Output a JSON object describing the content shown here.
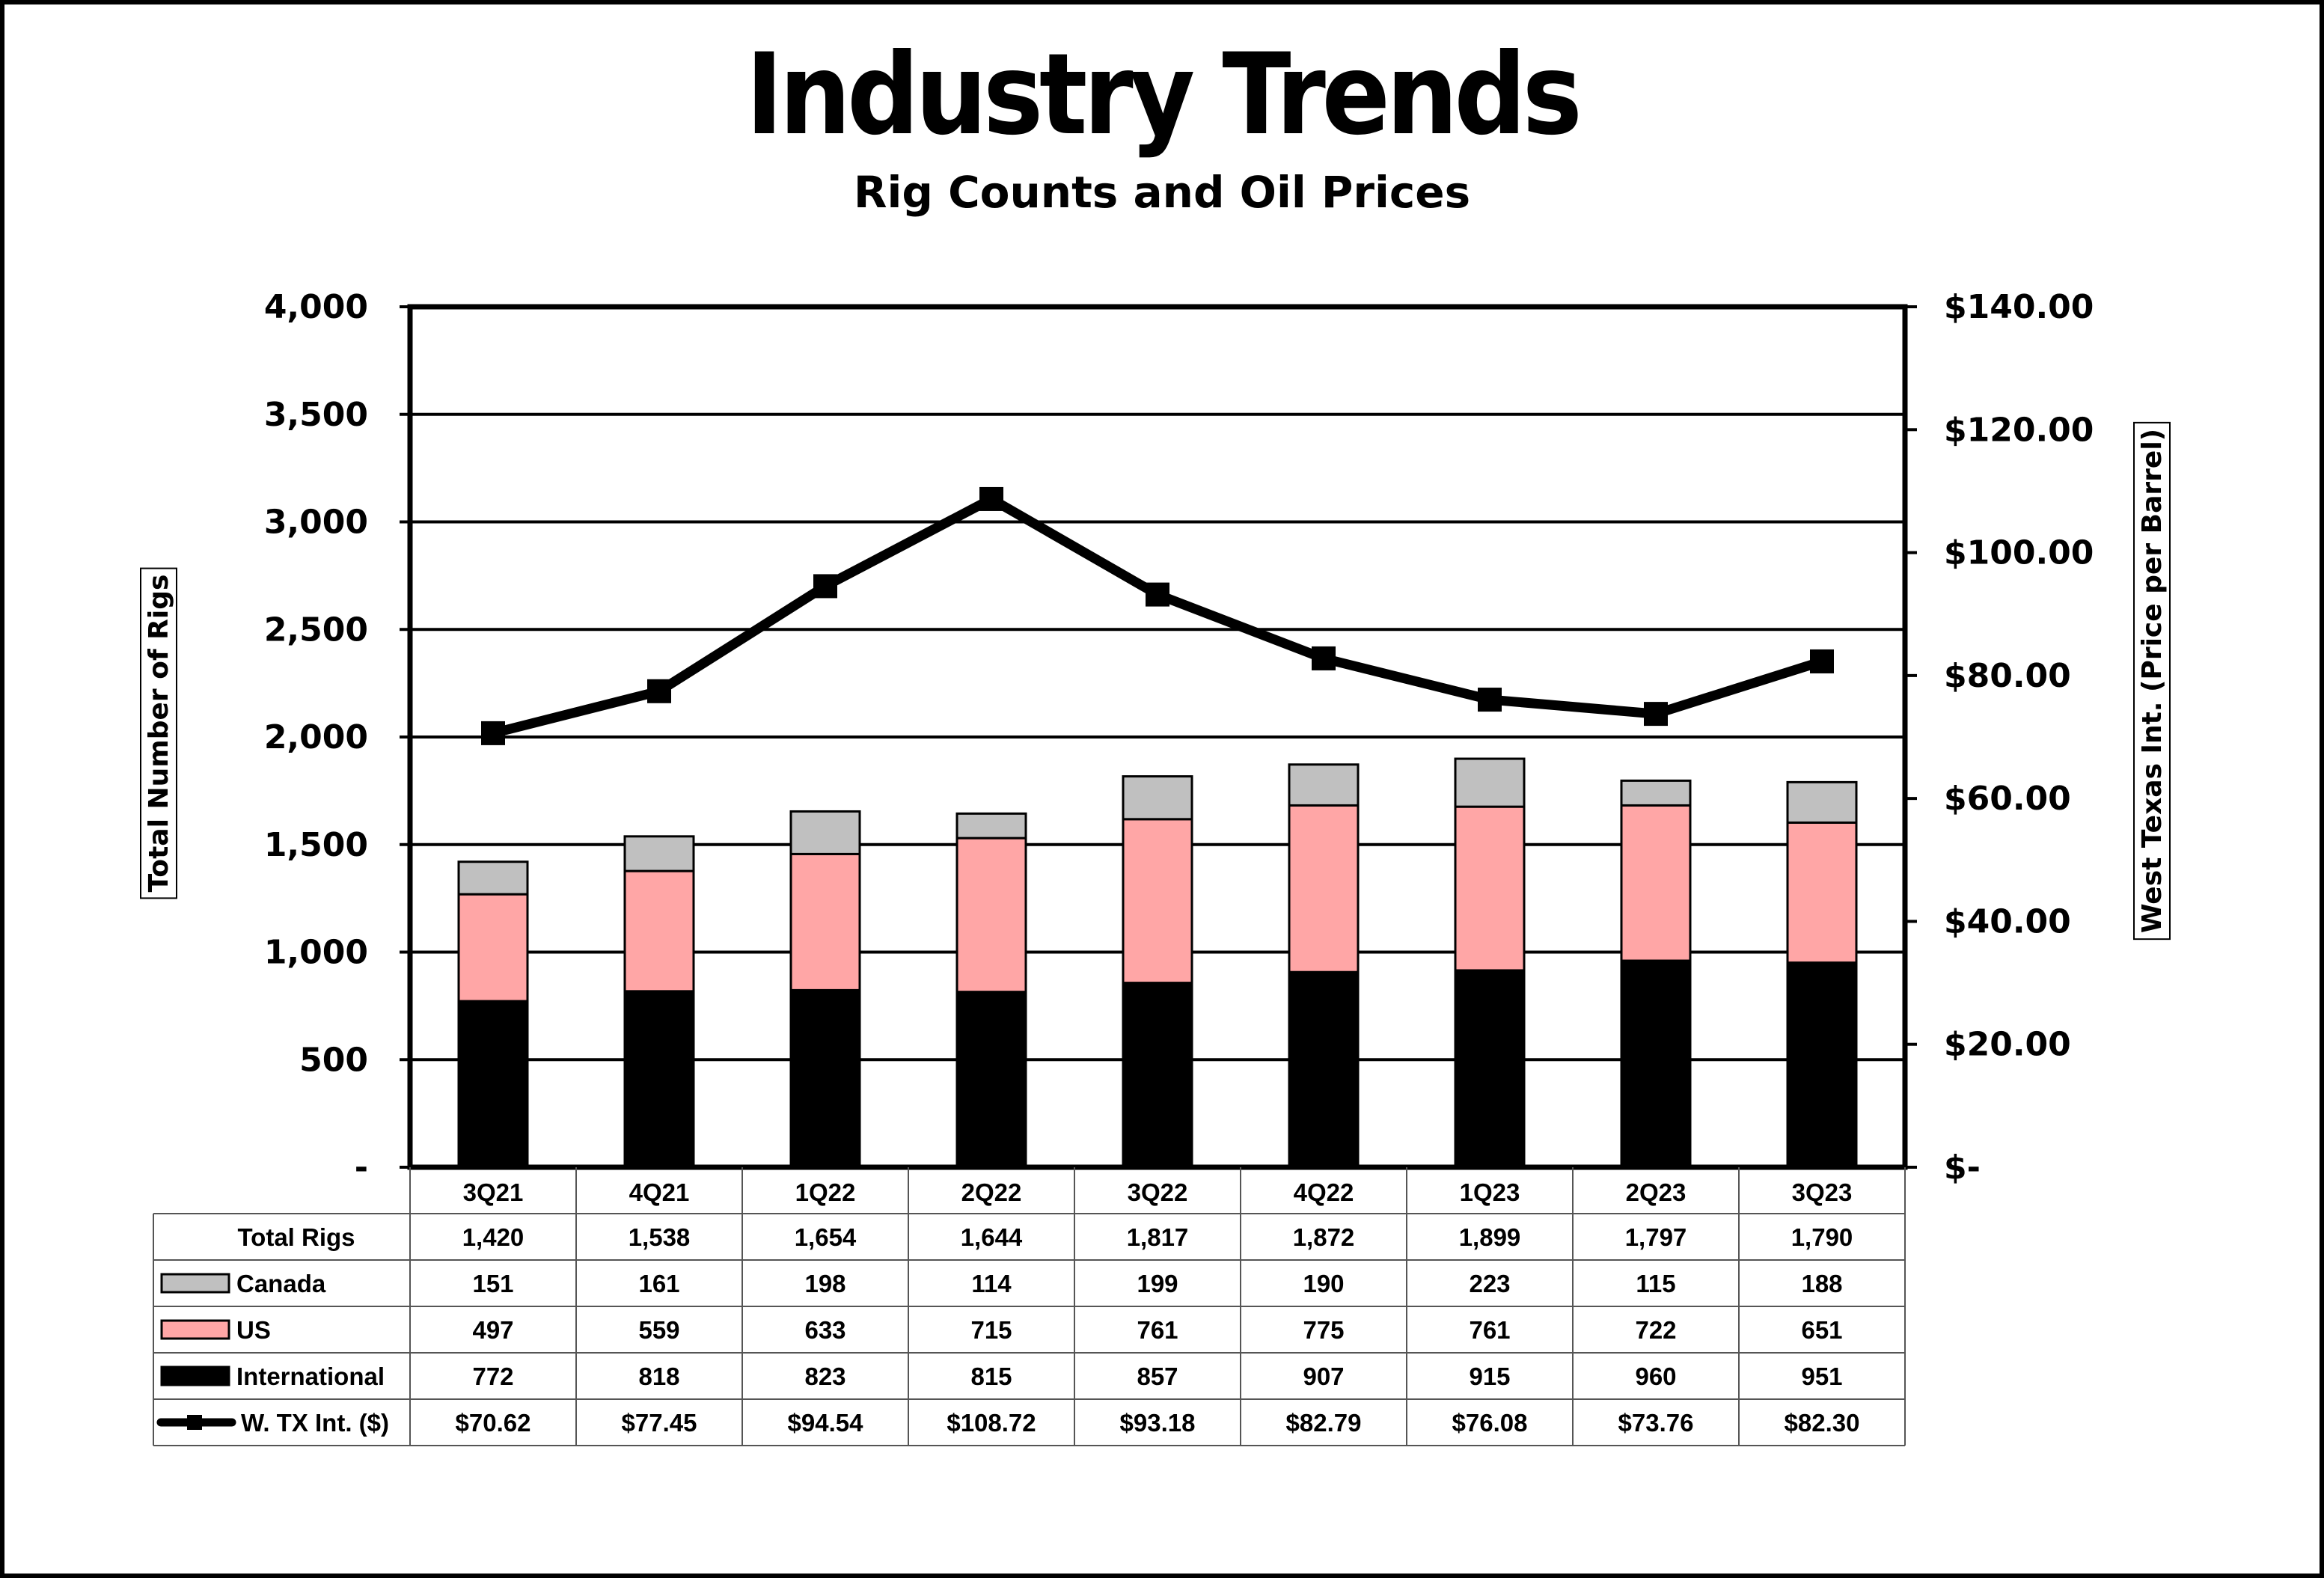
{
  "title": "Industry Trends",
  "subtitle": "Rig Counts and Oil Prices",
  "chart_data": {
    "type": "bar",
    "stacked": true,
    "categories": [
      "3Q21",
      "4Q21",
      "1Q22",
      "2Q22",
      "3Q22",
      "4Q22",
      "1Q23",
      "2Q23",
      "3Q23"
    ],
    "series": [
      {
        "name": "International",
        "kind": "bar",
        "color": "#000000",
        "values": [
          772,
          818,
          823,
          815,
          857,
          907,
          915,
          960,
          951
        ],
        "labels": [
          "772",
          "818",
          "823",
          "815",
          "857",
          "907",
          "915",
          "960",
          "951"
        ]
      },
      {
        "name": "US",
        "kind": "bar",
        "color": "#ffa6a6",
        "values": [
          497,
          559,
          633,
          715,
          761,
          775,
          761,
          722,
          651
        ],
        "labels": [
          "497",
          "559",
          "633",
          "715",
          "761",
          "775",
          "761",
          "722",
          "651"
        ]
      },
      {
        "name": "Canada",
        "kind": "bar",
        "color": "#c0c0c0",
        "values": [
          151,
          161,
          198,
          114,
          199,
          190,
          223,
          115,
          188
        ],
        "labels": [
          "151",
          "161",
          "198",
          "114",
          "199",
          "190",
          "223",
          "115",
          "188"
        ]
      },
      {
        "name": "W. TX Int. ($)",
        "kind": "line",
        "axis": "right",
        "color": "#000000",
        "values": [
          70.62,
          77.45,
          94.54,
          108.72,
          93.18,
          82.79,
          76.08,
          73.76,
          82.3
        ],
        "labels": [
          "$70.62",
          "$77.45",
          "$94.54",
          "$108.72",
          "$93.18",
          "$82.79",
          "$76.08",
          "$73.76",
          "$82.30"
        ]
      }
    ],
    "total": {
      "name": "Total Rigs",
      "values": [
        1420,
        1538,
        1654,
        1644,
        1817,
        1872,
        1899,
        1797,
        1790
      ],
      "labels": [
        "1,420",
        "1,538",
        "1,654",
        "1,644",
        "1,817",
        "1,872",
        "1,899",
        "1,797",
        "1,790"
      ]
    },
    "table_rows": [
      "Total Rigs",
      "Canada",
      "US",
      "International",
      "W. TX Int. ($)"
    ],
    "ylabel": "Total Number of Rigs",
    "y2label": "West Texas Int. (Price per Barrel)",
    "ylim": [
      0,
      4000
    ],
    "y2lim": [
      0,
      140
    ],
    "yticks": [
      0,
      500,
      1000,
      1500,
      2000,
      2500,
      3000,
      3500,
      4000
    ],
    "ytick_labels": [
      "-",
      "500",
      "1,000",
      "1,500",
      "2,000",
      "2,500",
      "3,000",
      "3,500",
      "4,000"
    ],
    "y2ticks": [
      0,
      20,
      40,
      60,
      80,
      100,
      120,
      140
    ],
    "y2tick_labels": [
      "$-",
      "$20.00",
      "$40.00",
      "$60.00",
      "$80.00",
      "$100.00",
      "$120.00",
      "$140.00"
    ],
    "grid": true,
    "legend": "data-table"
  }
}
